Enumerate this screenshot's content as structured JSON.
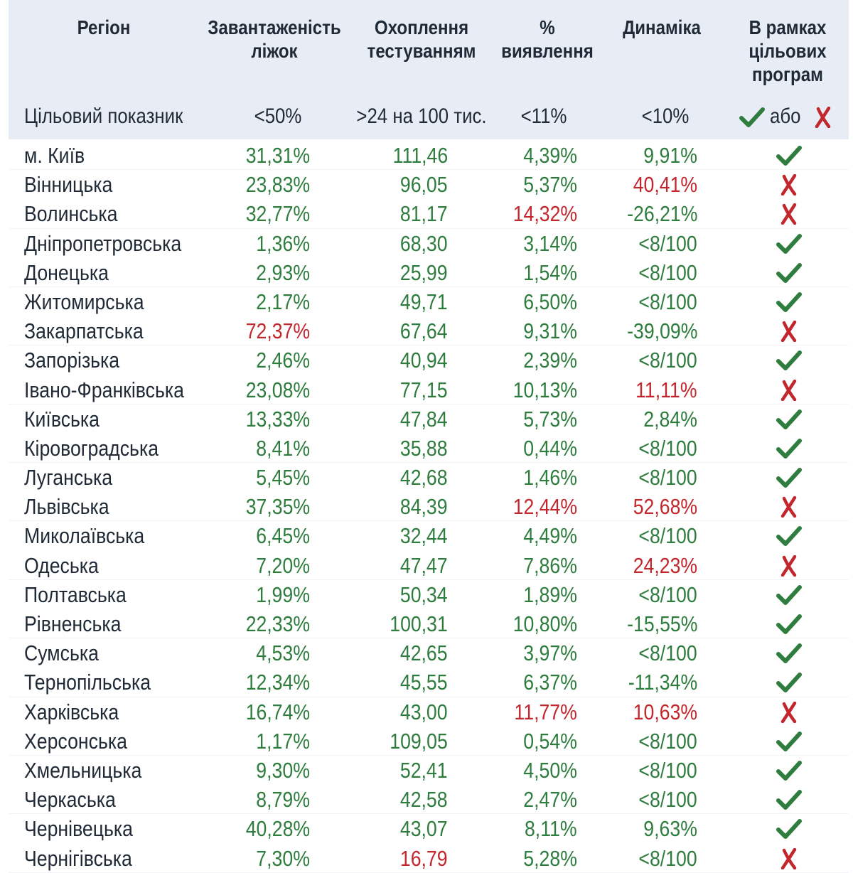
{
  "headers": {
    "region": "Регіон",
    "beds": "Завантаженість\nліжок",
    "testing": "Охоплення\nтестуванням",
    "detection": "%\nвиявлення",
    "dynamics": "Динаміка",
    "programs": "В рамках\nцільових\nпрограм"
  },
  "targets": {
    "label": "Цільовий показник",
    "beds": "<50%",
    "testing": ">24 на 100 тис.",
    "detection": "<11%",
    "dynamics": "<10%",
    "programs_or": "або"
  },
  "colors": {
    "green": "#2e7d3e",
    "red": "#c1272d",
    "header_bg": "#e8edf5",
    "text": "#1f2a36"
  },
  "icons": {
    "yes": "check-icon",
    "no": "cross-icon"
  },
  "rows": [
    {
      "region": "м. Київ",
      "beds": "31,31%",
      "beds_ok": true,
      "testing": "111,46",
      "testing_ok": true,
      "detection": "4,39%",
      "detection_ok": true,
      "dynamics": "9,91%",
      "dynamics_ok": true,
      "program": true
    },
    {
      "region": "Вінницька",
      "beds": "23,83%",
      "beds_ok": true,
      "testing": "96,05",
      "testing_ok": true,
      "detection": "5,37%",
      "detection_ok": true,
      "dynamics": "40,41%",
      "dynamics_ok": false,
      "program": false
    },
    {
      "region": "Волинська",
      "beds": "32,77%",
      "beds_ok": true,
      "testing": "81,17",
      "testing_ok": true,
      "detection": "14,32%",
      "detection_ok": false,
      "dynamics": "-26,21%",
      "dynamics_ok": true,
      "program": false
    },
    {
      "region": "Дніпропетровська",
      "beds": "1,36%",
      "beds_ok": true,
      "testing": "68,30",
      "testing_ok": true,
      "detection": "3,14%",
      "detection_ok": true,
      "dynamics": "<8/100",
      "dynamics_ok": true,
      "program": true
    },
    {
      "region": "Донецька",
      "beds": "2,93%",
      "beds_ok": true,
      "testing": "25,99",
      "testing_ok": true,
      "detection": "1,54%",
      "detection_ok": true,
      "dynamics": "<8/100",
      "dynamics_ok": true,
      "program": true
    },
    {
      "region": "Житомирська",
      "beds": "2,17%",
      "beds_ok": true,
      "testing": "49,71",
      "testing_ok": true,
      "detection": "6,50%",
      "detection_ok": true,
      "dynamics": "<8/100",
      "dynamics_ok": true,
      "program": true
    },
    {
      "region": "Закарпатська",
      "beds": "72,37%",
      "beds_ok": false,
      "testing": "67,64",
      "testing_ok": true,
      "detection": "9,31%",
      "detection_ok": true,
      "dynamics": "-39,09%",
      "dynamics_ok": true,
      "program": false
    },
    {
      "region": "Запорізька",
      "beds": "2,46%",
      "beds_ok": true,
      "testing": "40,94",
      "testing_ok": true,
      "detection": "2,39%",
      "detection_ok": true,
      "dynamics": "<8/100",
      "dynamics_ok": true,
      "program": true
    },
    {
      "region": "Івано-Франківська",
      "beds": "23,08%",
      "beds_ok": true,
      "testing": "77,15",
      "testing_ok": true,
      "detection": "10,13%",
      "detection_ok": true,
      "dynamics": "11,11%",
      "dynamics_ok": false,
      "program": false
    },
    {
      "region": "Київська",
      "beds": "13,33%",
      "beds_ok": true,
      "testing": "47,84",
      "testing_ok": true,
      "detection": "5,73%",
      "detection_ok": true,
      "dynamics": "2,84%",
      "dynamics_ok": true,
      "program": true
    },
    {
      "region": "Кіровоградська",
      "beds": "8,41%",
      "beds_ok": true,
      "testing": "35,88",
      "testing_ok": true,
      "detection": "0,44%",
      "detection_ok": true,
      "dynamics": "<8/100",
      "dynamics_ok": true,
      "program": true
    },
    {
      "region": "Луганська",
      "beds": "5,45%",
      "beds_ok": true,
      "testing": "42,68",
      "testing_ok": true,
      "detection": "1,46%",
      "detection_ok": true,
      "dynamics": "<8/100",
      "dynamics_ok": true,
      "program": true
    },
    {
      "region": "Львівська",
      "beds": "37,35%",
      "beds_ok": true,
      "testing": "84,39",
      "testing_ok": true,
      "detection": "12,44%",
      "detection_ok": false,
      "dynamics": "52,68%",
      "dynamics_ok": false,
      "program": false
    },
    {
      "region": "Миколаївська",
      "beds": "6,45%",
      "beds_ok": true,
      "testing": "32,44",
      "testing_ok": true,
      "detection": "4,49%",
      "detection_ok": true,
      "dynamics": "<8/100",
      "dynamics_ok": true,
      "program": true
    },
    {
      "region": "Одеська",
      "beds": "7,20%",
      "beds_ok": true,
      "testing": "47,47",
      "testing_ok": true,
      "detection": "7,86%",
      "detection_ok": true,
      "dynamics": "24,23%",
      "dynamics_ok": false,
      "program": false
    },
    {
      "region": "Полтавська",
      "beds": "1,99%",
      "beds_ok": true,
      "testing": "50,34",
      "testing_ok": true,
      "detection": "1,89%",
      "detection_ok": true,
      "dynamics": "<8/100",
      "dynamics_ok": true,
      "program": true
    },
    {
      "region": "Рівненська",
      "beds": "22,33%",
      "beds_ok": true,
      "testing": "100,31",
      "testing_ok": true,
      "detection": "10,80%",
      "detection_ok": true,
      "dynamics": "-15,55%",
      "dynamics_ok": true,
      "program": true
    },
    {
      "region": "Сумська",
      "beds": "4,53%",
      "beds_ok": true,
      "testing": "42,65",
      "testing_ok": true,
      "detection": "3,97%",
      "detection_ok": true,
      "dynamics": "<8/100",
      "dynamics_ok": true,
      "program": true
    },
    {
      "region": "Тернопільська",
      "beds": "12,34%",
      "beds_ok": true,
      "testing": "45,55",
      "testing_ok": true,
      "detection": "6,37%",
      "detection_ok": true,
      "dynamics": "-11,34%",
      "dynamics_ok": true,
      "program": true
    },
    {
      "region": "Харківська",
      "beds": "16,74%",
      "beds_ok": true,
      "testing": "43,00",
      "testing_ok": true,
      "detection": "11,77%",
      "detection_ok": false,
      "dynamics": "10,63%",
      "dynamics_ok": false,
      "program": false
    },
    {
      "region": "Херсонська",
      "beds": "1,17%",
      "beds_ok": true,
      "testing": "109,05",
      "testing_ok": true,
      "detection": "0,54%",
      "detection_ok": true,
      "dynamics": "<8/100",
      "dynamics_ok": true,
      "program": true
    },
    {
      "region": "Хмельницька",
      "beds": "9,30%",
      "beds_ok": true,
      "testing": "52,41",
      "testing_ok": true,
      "detection": "4,50%",
      "detection_ok": true,
      "dynamics": "<8/100",
      "dynamics_ok": true,
      "program": true
    },
    {
      "region": "Черкаська",
      "beds": "8,79%",
      "beds_ok": true,
      "testing": "42,58",
      "testing_ok": true,
      "detection": "2,47%",
      "detection_ok": true,
      "dynamics": "<8/100",
      "dynamics_ok": true,
      "program": true
    },
    {
      "region": "Чернівецька",
      "beds": "40,28%",
      "beds_ok": true,
      "testing": "43,07",
      "testing_ok": true,
      "detection": "8,11%",
      "detection_ok": true,
      "dynamics": "9,63%",
      "dynamics_ok": true,
      "program": true
    },
    {
      "region": "Чернігівська",
      "beds": "7,30%",
      "beds_ok": true,
      "testing": "16,79",
      "testing_ok": false,
      "detection": "5,28%",
      "detection_ok": true,
      "dynamics": "<8/100",
      "dynamics_ok": true,
      "program": false
    }
  ]
}
